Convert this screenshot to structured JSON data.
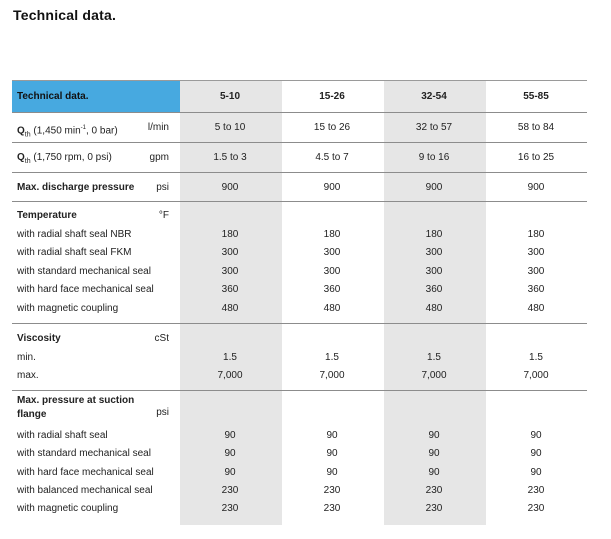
{
  "page_title": "Technical data.",
  "header": {
    "label": "Technical data.",
    "columns": [
      "5-10",
      "15-26",
      "32-54",
      "55-85"
    ]
  },
  "sections": [
    {
      "id": "q-lmin",
      "title": "Q",
      "title_sub": "th",
      "title_suffix": " (1,450 min",
      "title_sup": "-1",
      "title_end": ", 0 bar)",
      "unit": "l/min",
      "values": [
        "5 to 10",
        "15 to 26",
        "32 to 57",
        "58 to 84"
      ]
    },
    {
      "id": "q-gpm",
      "title": "Q",
      "title_sub": "th",
      "title_suffix": " (1,750 rpm, 0 psi)",
      "unit": "gpm",
      "values": [
        "1.5 to 3",
        "4.5 to 7",
        "9 to 16",
        "16 to 25"
      ]
    },
    {
      "id": "max-discharge",
      "title": "Max. discharge pressure",
      "unit": "psi",
      "values": [
        "900",
        "900",
        "900",
        "900"
      ]
    },
    {
      "id": "temperature",
      "title": "Temperature",
      "unit": "°F",
      "rows": [
        {
          "label": "with radial shaft seal NBR",
          "values": [
            "180",
            "180",
            "180",
            "180"
          ]
        },
        {
          "label": "with radial shaft seal FKM",
          "values": [
            "300",
            "300",
            "300",
            "300"
          ]
        },
        {
          "label": "with standard mechanical seal",
          "values": [
            "300",
            "300",
            "300",
            "300"
          ]
        },
        {
          "label": "with hard face mechanical seal",
          "values": [
            "360",
            "360",
            "360",
            "360"
          ]
        },
        {
          "label": "with magnetic coupling",
          "values": [
            "480",
            "480",
            "480",
            "480"
          ]
        }
      ]
    },
    {
      "id": "viscosity",
      "title": "Viscosity",
      "unit": "cSt",
      "rows": [
        {
          "label": "min.",
          "values": [
            "1.5",
            "1.5",
            "1.5",
            "1.5"
          ]
        },
        {
          "label": "max.",
          "values": [
            "7,000",
            "7,000",
            "7,000",
            "7,000"
          ]
        }
      ]
    },
    {
      "id": "suction-pressure",
      "title_line1": "Max. pressure at suction",
      "title_line2": "flange",
      "unit": "psi",
      "rows": [
        {
          "label": "with radial shaft seal",
          "values": [
            "90",
            "90",
            "90",
            "90"
          ]
        },
        {
          "label": "with standard mechanical seal",
          "values": [
            "90",
            "90",
            "90",
            "90"
          ]
        },
        {
          "label": "with hard face mechanical seal",
          "values": [
            "90",
            "90",
            "90",
            "90"
          ]
        },
        {
          "label": "with balanced mechanical seal",
          "values": [
            "230",
            "230",
            "230",
            "230"
          ]
        },
        {
          "label": "with magnetic coupling",
          "values": [
            "230",
            "230",
            "230",
            "230"
          ]
        }
      ]
    }
  ],
  "colors": {
    "header_blue": "#47a9e0",
    "shade_gray": "#e6e6e6",
    "rule_gray": "#8c8c8c"
  }
}
